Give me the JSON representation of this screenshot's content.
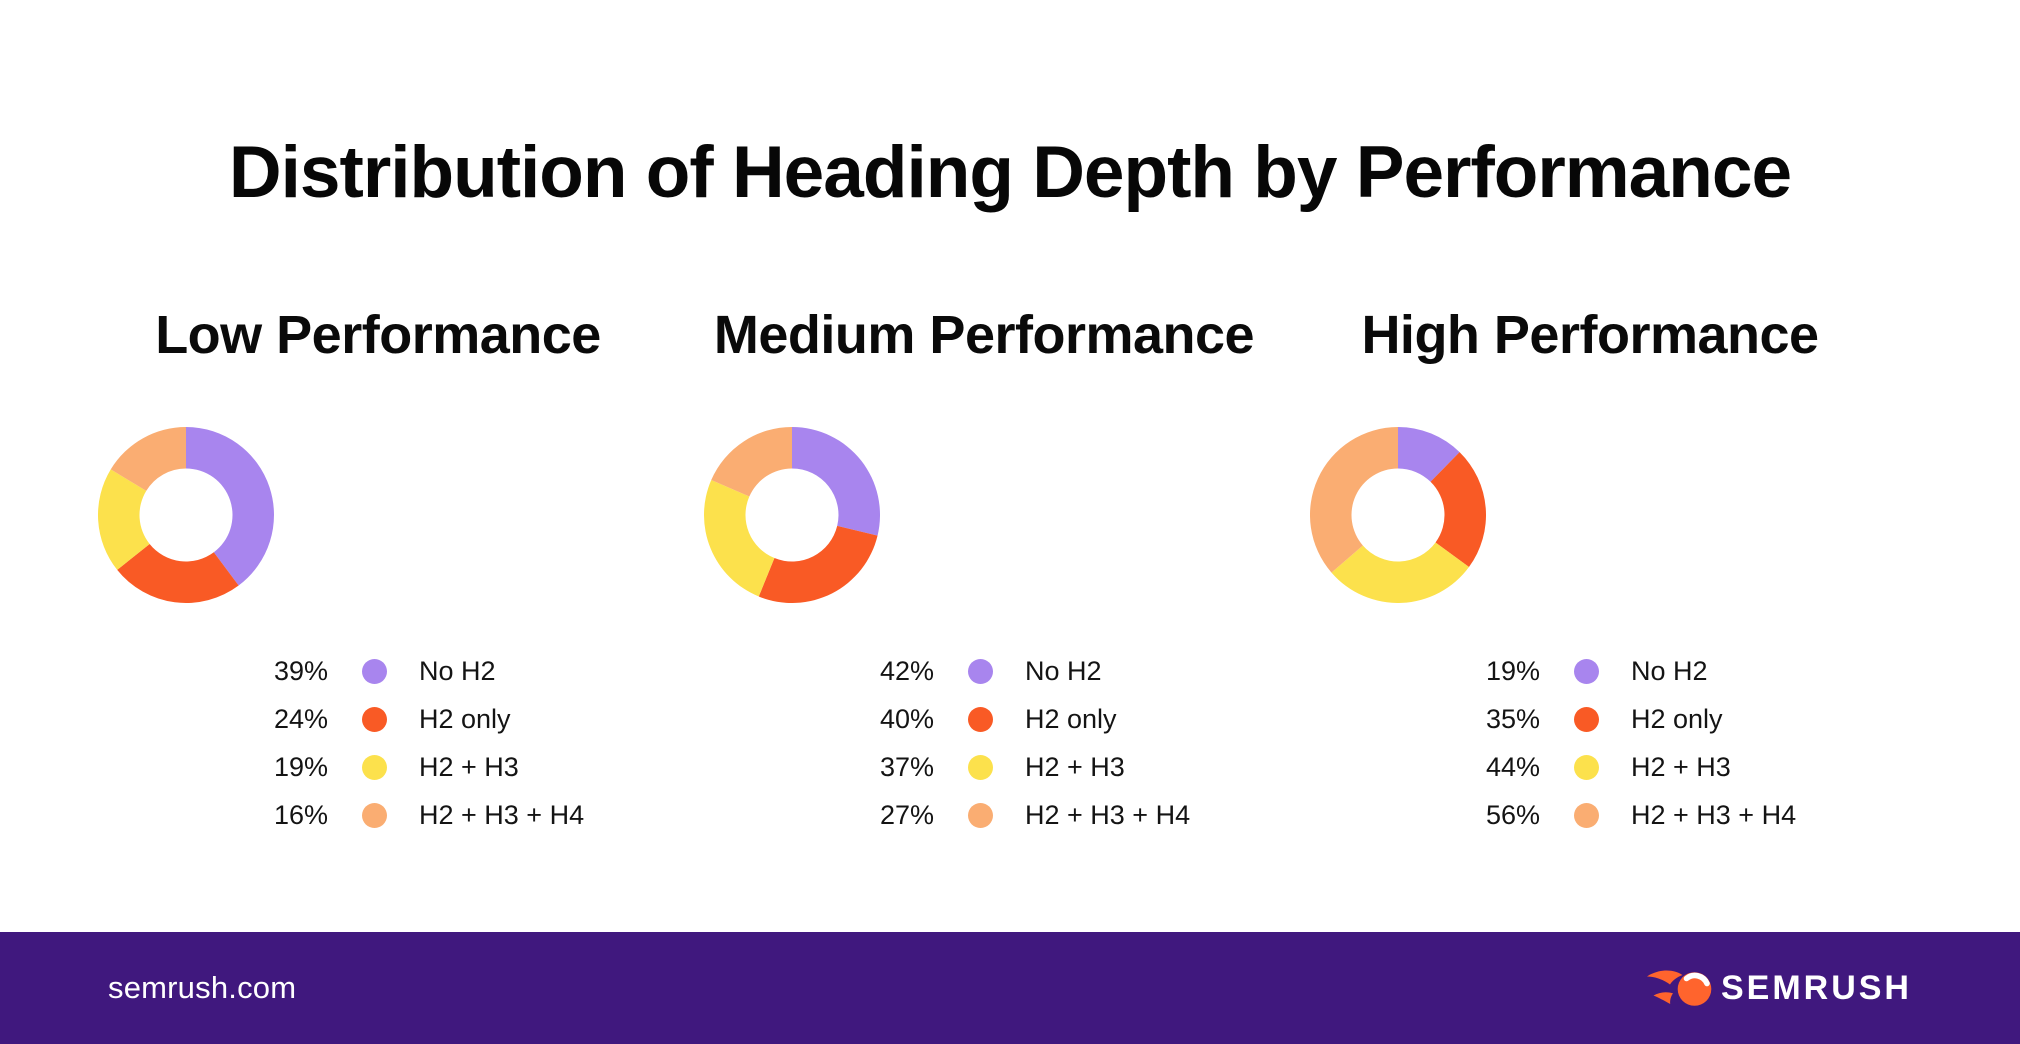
{
  "header": {
    "title": "Distribution of Heading Depth by Performance"
  },
  "chart_data": [
    {
      "type": "pie",
      "variant": "donut",
      "title": "Low Performance",
      "categories": [
        "No H2",
        "H2 only",
        "H2 + H3",
        "H2 + H3 + H4"
      ],
      "values": [
        39,
        24,
        19,
        16
      ],
      "value_labels": [
        "39%",
        "24%",
        "19%",
        "16%"
      ],
      "unit": "%",
      "colors": [
        "#A885EE",
        "#F95A25",
        "#FCE14C",
        "#FAAD72"
      ],
      "color_names": [
        "purple",
        "orange",
        "yellow",
        "peach"
      ],
      "legend_position": "bottom",
      "start_angle_deg": -90,
      "direction": "clockwise"
    },
    {
      "type": "pie",
      "variant": "donut",
      "title": "Medium Performance",
      "categories": [
        "No H2",
        "H2 only",
        "H2 + H3",
        "H2 + H3 + H4"
      ],
      "values": [
        42,
        40,
        37,
        27
      ],
      "value_labels": [
        "42%",
        "40%",
        "37%",
        "27%"
      ],
      "unit": "%",
      "colors": [
        "#A885EE",
        "#F95A25",
        "#FCE14C",
        "#FAAD72"
      ],
      "color_names": [
        "purple",
        "orange",
        "yellow",
        "peach"
      ],
      "legend_position": "bottom",
      "start_angle_deg": -90,
      "direction": "clockwise"
    },
    {
      "type": "pie",
      "variant": "donut",
      "title": "High Performance",
      "categories": [
        "No H2",
        "H2 only",
        "H2 + H3",
        "H2 + H3 + H4"
      ],
      "values": [
        19,
        35,
        44,
        56
      ],
      "value_labels": [
        "19%",
        "35%",
        "44%",
        "56%"
      ],
      "unit": "%",
      "colors": [
        "#A885EE",
        "#F95A25",
        "#FCE14C",
        "#FAAD72"
      ],
      "color_names": [
        "purple",
        "orange",
        "yellow",
        "peach"
      ],
      "legend_position": "bottom",
      "start_angle_deg": -90,
      "direction": "clockwise"
    }
  ],
  "footer": {
    "site": "semrush.com",
    "brand": "SEMRUSH",
    "logo_icon": "semrush-flame-icon",
    "background": "#40187E",
    "logo_orange": "#FF642D"
  },
  "palette": {
    "background": "#FFFFFF",
    "text": "#0A0A0A",
    "purple": "#A885EE",
    "orange": "#F95A25",
    "yellow": "#FCE14C",
    "peach": "#FAAD72"
  }
}
